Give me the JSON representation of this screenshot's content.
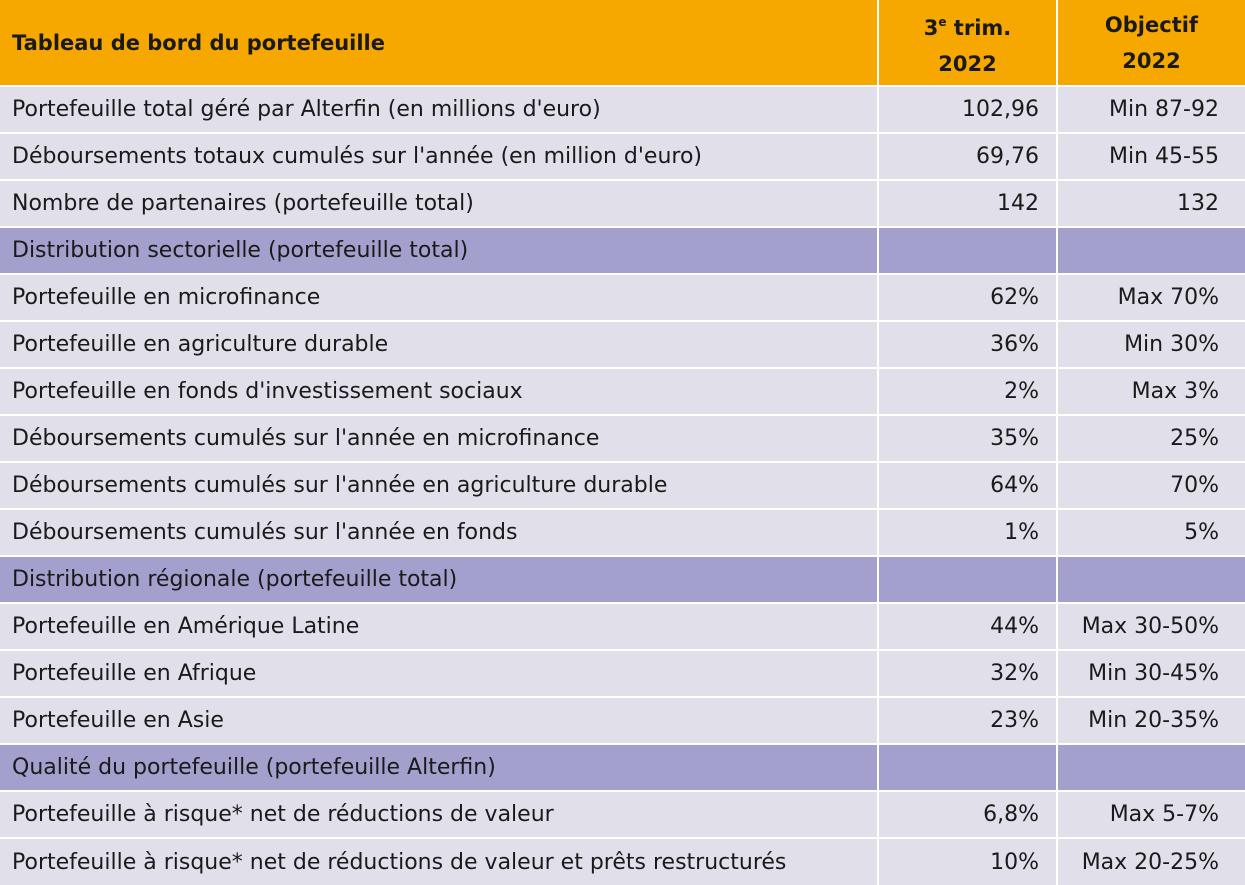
{
  "header": {
    "title": "Tableau de bord du portefeuille",
    "col_quarter": {
      "prefix": "3",
      "superscript": "e",
      "line1_rest": " trim.",
      "line2": "2022"
    },
    "col_target": {
      "line1": "Objectif",
      "line2": "2022"
    }
  },
  "rows": [
    {
      "type": "row",
      "label": "Portefeuille total géré par Alterfin (en millions d'euro)",
      "quarter": "102,96",
      "target": "Min 87-92"
    },
    {
      "type": "row",
      "label": "Déboursements totaux cumulés sur l'année (en million d'euro)",
      "quarter": "69,76",
      "target": "Min 45-55"
    },
    {
      "type": "row",
      "label": "Nombre de partenaires (portefeuille total)",
      "quarter": "142",
      "target": "132"
    },
    {
      "type": "section",
      "label": "Distribution sectorielle (portefeuille total)"
    },
    {
      "type": "row",
      "label": "Portefeuille en microfinance",
      "quarter": "62%",
      "target": "Max 70%"
    },
    {
      "type": "row",
      "label": "Portefeuille en agriculture durable",
      "quarter": "36%",
      "target": "Min 30%"
    },
    {
      "type": "row",
      "label": "Portefeuille en fonds d'investissement sociaux",
      "quarter": "2%",
      "target": "Max 3%"
    },
    {
      "type": "row",
      "label": "Déboursements cumulés sur l'année en microfinance",
      "quarter": "35%",
      "target": "25%"
    },
    {
      "type": "row",
      "label": "Déboursements cumulés sur l'année en agriculture durable",
      "quarter": "64%",
      "target": "70%"
    },
    {
      "type": "row",
      "label": "Déboursements cumulés sur l'année en fonds",
      "quarter": "1%",
      "target": "5%"
    },
    {
      "type": "section",
      "label": "Distribution régionale (portefeuille total)"
    },
    {
      "type": "row",
      "label": "Portefeuille en Amérique Latine",
      "quarter": "44%",
      "target": "Max 30-50%"
    },
    {
      "type": "row",
      "label": "Portefeuille en Afrique",
      "quarter": "32%",
      "target": "Min 30-45%"
    },
    {
      "type": "row",
      "label": "Portefeuille en Asie",
      "quarter": "23%",
      "target": "Min 20-35%"
    },
    {
      "type": "section",
      "label": "Qualité du portefeuille (portefeuille Alterfin)"
    },
    {
      "type": "row",
      "label": "Portefeuille à risque* net de réductions de valeur",
      "quarter": "6,8%",
      "target": "Max 5-7%"
    },
    {
      "type": "row",
      "label": "Portefeuille à risque* net de réductions de valeur et prêts restructurés",
      "quarter": "10%",
      "target": "Max 20-25%"
    }
  ],
  "colors": {
    "header": "#f6a800",
    "section": "#a3a0cd",
    "row": "#e1dfea"
  }
}
